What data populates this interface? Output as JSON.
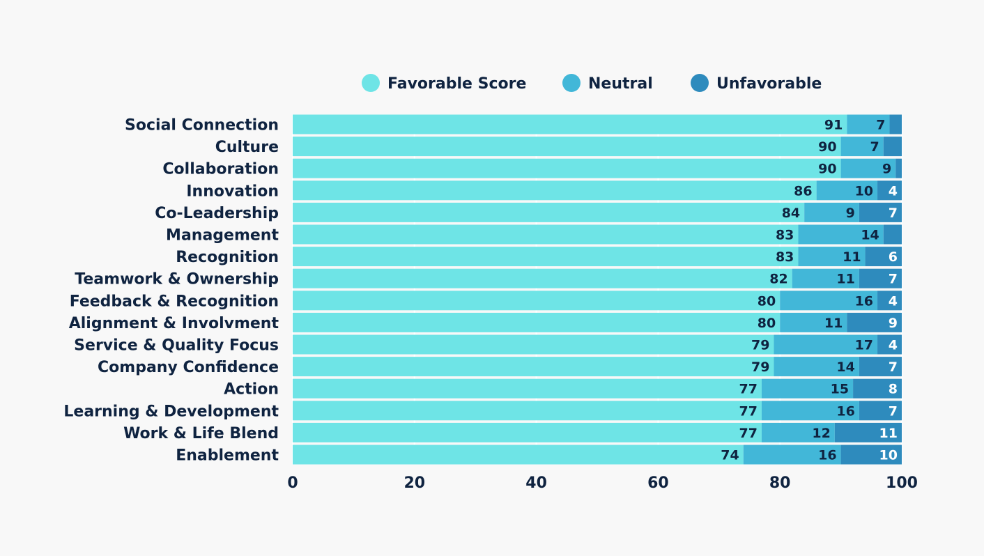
{
  "chart_data": {
    "type": "bar",
    "orientation": "horizontal",
    "stacked": true,
    "categories": [
      "Social Connection",
      "Culture",
      "Collaboration",
      "Innovation",
      "Co-Leadership",
      "Management",
      "Recognition",
      "Teamwork & Ownership",
      "Feedback & Recognition",
      "Alignment & Involvment",
      "Service & Quality Focus",
      "Company Confidence",
      "Action",
      "Learning & Development",
      "Work & Life Blend",
      "Enablement"
    ],
    "series": [
      {
        "name": "Favorable Score",
        "color": "#6ee4e6",
        "values": [
          91,
          90,
          90,
          86,
          84,
          83,
          83,
          82,
          80,
          80,
          79,
          79,
          77,
          77,
          77,
          74
        ],
        "labels": [
          "91",
          "90",
          "90",
          "86",
          "84",
          "83",
          "83",
          "82",
          "80",
          "80",
          "79",
          "79",
          "77",
          "77",
          "77",
          "74"
        ]
      },
      {
        "name": "Neutral",
        "color": "#42b7d8",
        "values": [
          7,
          7,
          9,
          10,
          9,
          14,
          11,
          11,
          16,
          11,
          17,
          14,
          15,
          16,
          12,
          16
        ],
        "labels": [
          "7",
          "7",
          "9",
          "10",
          "9",
          "14",
          "11",
          "11",
          "16",
          "11",
          "17",
          "14",
          "15",
          "16",
          "12",
          "16"
        ]
      },
      {
        "name": "Unfavorable",
        "color": "#2e8bbd",
        "values": [
          2,
          3,
          1,
          4,
          7,
          3,
          6,
          7,
          4,
          9,
          4,
          7,
          8,
          7,
          11,
          10
        ],
        "labels": [
          "",
          "",
          "",
          "4",
          "7",
          "",
          "6",
          "7",
          "4",
          "9",
          "4",
          "7",
          "8",
          "7",
          "11",
          "10"
        ]
      }
    ],
    "xlim": [
      0,
      100
    ],
    "x_ticks": [
      "0",
      "20",
      "40",
      "60",
      "80",
      "100"
    ],
    "xlabel": "",
    "ylabel": "",
    "grid": true,
    "legend_position": "top-center"
  }
}
